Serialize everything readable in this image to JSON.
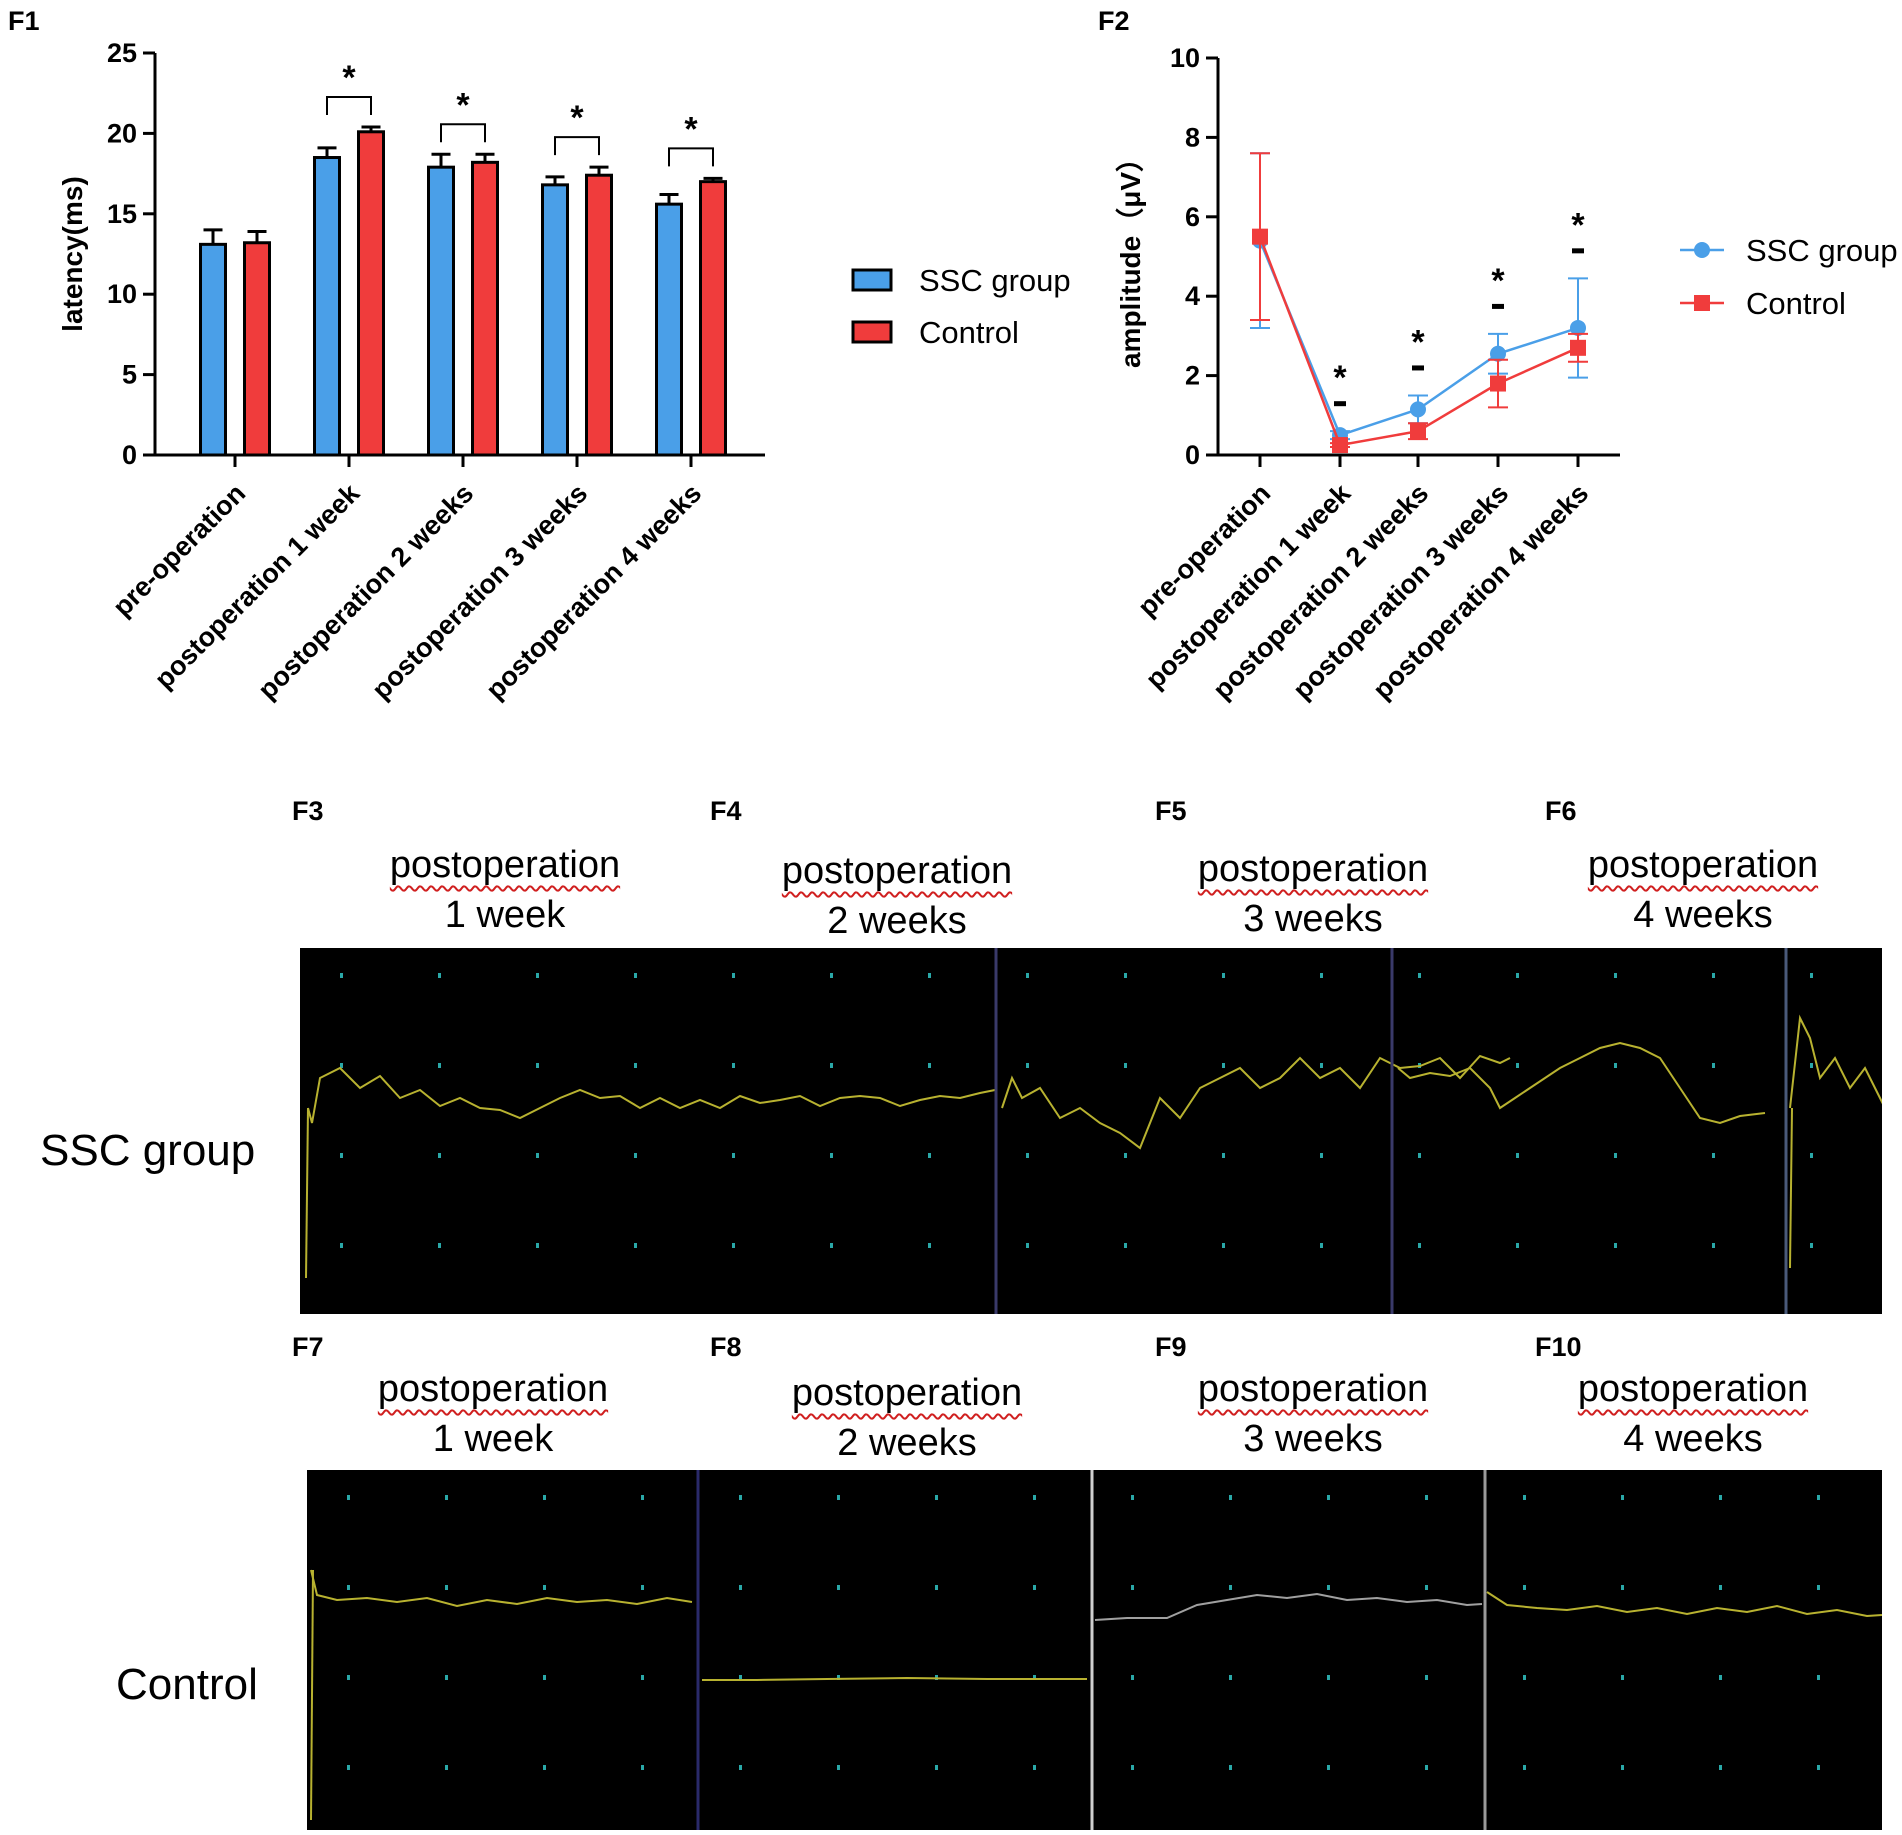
{
  "panels": {
    "f1": "F1",
    "f2": "F2",
    "f3": "F3",
    "f4": "F4",
    "f5": "F5",
    "f6": "F6",
    "f7": "F7",
    "f8": "F8",
    "f9": "F9",
    "f10": "F10"
  },
  "colors": {
    "ssc": "#4a9fe8",
    "control": "#f03c3c"
  },
  "chart_data": [
    {
      "id": "F1",
      "type": "bar",
      "title": "",
      "xlabel": "",
      "ylabel": "latency(ms)",
      "ylim": [
        0,
        25
      ],
      "yticks": [
        0,
        5,
        10,
        15,
        20,
        25
      ],
      "categories": [
        "pre-operation",
        "postoperation 1 week",
        "postoperation 2 weeks",
        "postoperation 3 weeks",
        "postoperation 4 weeks"
      ],
      "series": [
        {
          "name": "SSC group",
          "values": [
            13.1,
            18.5,
            17.9,
            16.8,
            15.6
          ],
          "errors": [
            0.9,
            0.6,
            0.8,
            0.5,
            0.6
          ]
        },
        {
          "name": "Control",
          "values": [
            13.2,
            20.1,
            18.2,
            17.4,
            17.0
          ],
          "errors": [
            0.7,
            0.3,
            0.5,
            0.5,
            0.2
          ]
        }
      ],
      "significance": [
        "",
        "*",
        "*",
        "*",
        "*"
      ],
      "legend": [
        "SSC group",
        "Control"
      ]
    },
    {
      "id": "F2",
      "type": "line",
      "title": "",
      "xlabel": "",
      "ylabel": "amplitude（μV）",
      "ylim": [
        0,
        10
      ],
      "yticks": [
        0,
        2,
        4,
        6,
        8,
        10
      ],
      "categories": [
        "pre-operation",
        "postoperation 1 week",
        "postoperation 2 weeks",
        "postoperation 3 weeks",
        "postoperation 4 weeks"
      ],
      "series": [
        {
          "name": "SSC group",
          "values": [
            5.4,
            0.5,
            1.15,
            2.55,
            3.2
          ],
          "errors": [
            2.2,
            0.1,
            0.35,
            0.5,
            1.25
          ]
        },
        {
          "name": "Control",
          "values": [
            5.5,
            0.25,
            0.6,
            1.8,
            2.7
          ],
          "errors": [
            2.1,
            0.05,
            0.2,
            0.6,
            0.35
          ]
        }
      ],
      "significance": [
        "",
        "*",
        "*",
        "*",
        "*"
      ],
      "legend": [
        "SSC group",
        "Control"
      ]
    }
  ],
  "traces": {
    "row_labels": [
      "SSC group",
      "Control"
    ],
    "title_line1": "postoperation",
    "ssc": [
      {
        "panel": "F3",
        "weeks": "1 week"
      },
      {
        "panel": "F4",
        "weeks": "2 weeks"
      },
      {
        "panel": "F5",
        "weeks": "3 weeks"
      },
      {
        "panel": "F6",
        "weeks": "4 weeks"
      }
    ],
    "control": [
      {
        "panel": "F7",
        "weeks": "1 week"
      },
      {
        "panel": "F8",
        "weeks": "2 weeks"
      },
      {
        "panel": "F9",
        "weeks": "3 weeks"
      },
      {
        "panel": "F10",
        "weeks": "4 weeks"
      }
    ]
  }
}
